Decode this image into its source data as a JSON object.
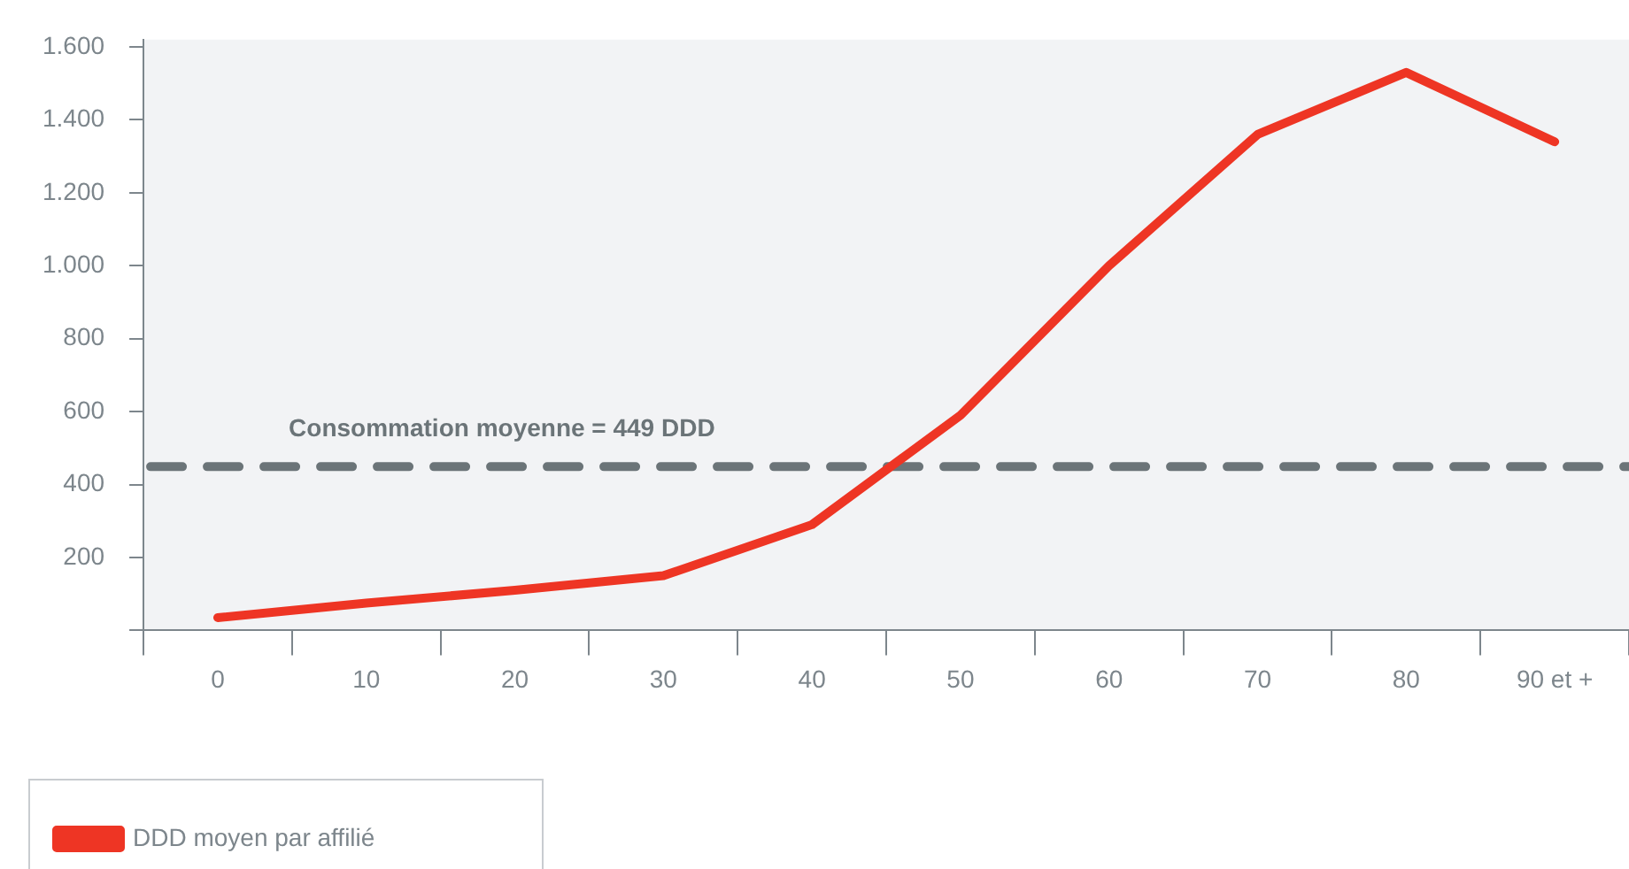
{
  "chart_data": {
    "type": "line",
    "categories": [
      "0",
      "10",
      "20",
      "30",
      "40",
      "50",
      "60",
      "70",
      "80",
      "90 et +"
    ],
    "series": [
      {
        "name": "DDD moyen par affilié",
        "color": "#ee3524",
        "values": [
          35,
          75,
          110,
          150,
          290,
          590,
          1000,
          1360,
          1530,
          1340
        ]
      }
    ],
    "ylim": [
      0,
      1620
    ],
    "yticks": [
      {
        "value": 0,
        "label": null
      },
      {
        "value": 200,
        "label": "200"
      },
      {
        "value": 400,
        "label": "400"
      },
      {
        "value": 600,
        "label": "600"
      },
      {
        "value": 800,
        "label": "800"
      },
      {
        "value": 1000,
        "label": "1.000"
      },
      {
        "value": 1200,
        "label": "1.200"
      },
      {
        "value": 1400,
        "label": "1.400"
      },
      {
        "value": 1600,
        "label": "1.600"
      }
    ],
    "ref_lines": [
      {
        "axis": "y",
        "value": 449,
        "label": "Consommation moyenne = 449 DDD",
        "color": "#6b7478",
        "line_style": "dashed"
      }
    ],
    "grid": false,
    "legend": "bottom left",
    "marker": "none",
    "line_style": "solid"
  }
}
